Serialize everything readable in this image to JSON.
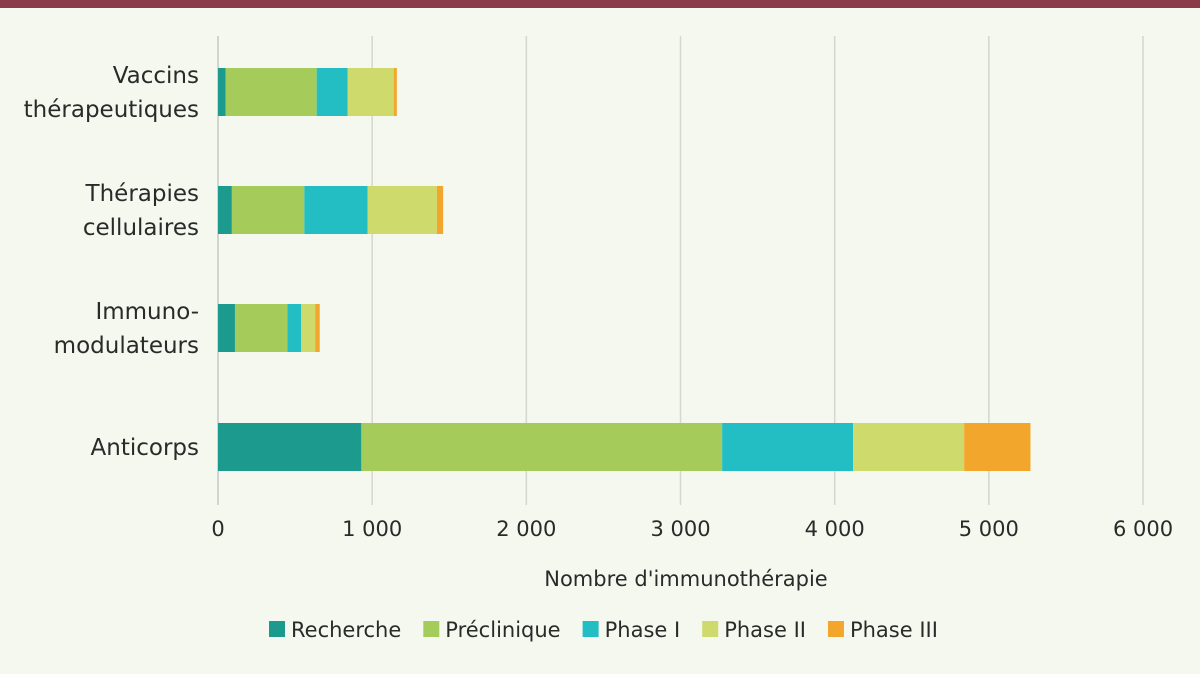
{
  "chart_data": {
    "type": "bar",
    "orientation": "horizontal",
    "stacked": true,
    "title": "",
    "xlabel": "Nombre d'immunothérapie",
    "ylabel": "",
    "xlim": [
      0,
      6000
    ],
    "xticks": [
      0,
      1000,
      2000,
      3000,
      4000,
      5000,
      6000
    ],
    "xtick_labels": [
      "0",
      "1 000",
      "2 000",
      "3 000",
      "4 000",
      "5 000",
      "6 000"
    ],
    "grid": "vertical",
    "legend_position": "bottom",
    "categories": [
      [
        "Vaccins",
        "thérapeutiques"
      ],
      [
        "Thérapies",
        "cellulaires"
      ],
      [
        "Immuno-",
        "modulateurs"
      ],
      [
        "Anticorps"
      ]
    ],
    "series": [
      {
        "name": "Recherche",
        "color": "#1c9a8e",
        "values": [
          50,
          90,
          110,
          930
        ]
      },
      {
        "name": "Préclinique",
        "color": "#a5cc5b",
        "values": [
          590,
          470,
          340,
          2340
        ]
      },
      {
        "name": "Phase I",
        "color": "#22bec4",
        "values": [
          200,
          410,
          90,
          850
        ]
      },
      {
        "name": "Phase II",
        "color": "#cedb6c",
        "values": [
          300,
          450,
          90,
          720
        ]
      },
      {
        "name": "Phase III",
        "color": "#f2a72c",
        "values": [
          20,
          40,
          30,
          430
        ]
      }
    ]
  }
}
